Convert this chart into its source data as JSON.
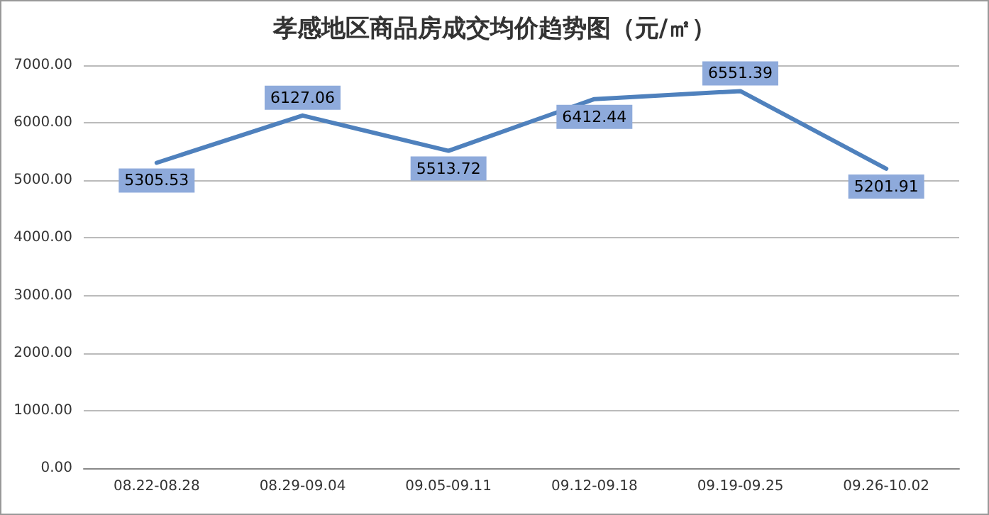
{
  "chart_data": {
    "type": "line",
    "title": "孝感地区商品房成交均价趋势图（元/㎡）",
    "categories": [
      "08.22-08.28",
      "08.29-09.04",
      "09.05-09.11",
      "09.12-09.18",
      "09.19-09.25",
      "09.26-10.02"
    ],
    "series": [
      {
        "color": "#4f81bd",
        "values": [
          5305.53,
          6127.06,
          5513.72,
          6412.44,
          6551.39,
          5201.91
        ]
      }
    ],
    "ylim": [
      0,
      7000
    ],
    "yticks": [
      {
        "value": 0,
        "label": "0.00"
      },
      {
        "value": 1000,
        "label": "1000.00"
      },
      {
        "value": 2000,
        "label": "2000.00"
      },
      {
        "value": 3000,
        "label": "3000.00"
      },
      {
        "value": 4000,
        "label": "4000.00"
      },
      {
        "value": 5000,
        "label": "5000.00"
      },
      {
        "value": 6000,
        "label": "6000.00"
      },
      {
        "value": 7000,
        "label": "7000.00"
      }
    ],
    "grid": "y",
    "data_labels": true,
    "marker": "none",
    "line_style": "solid"
  }
}
